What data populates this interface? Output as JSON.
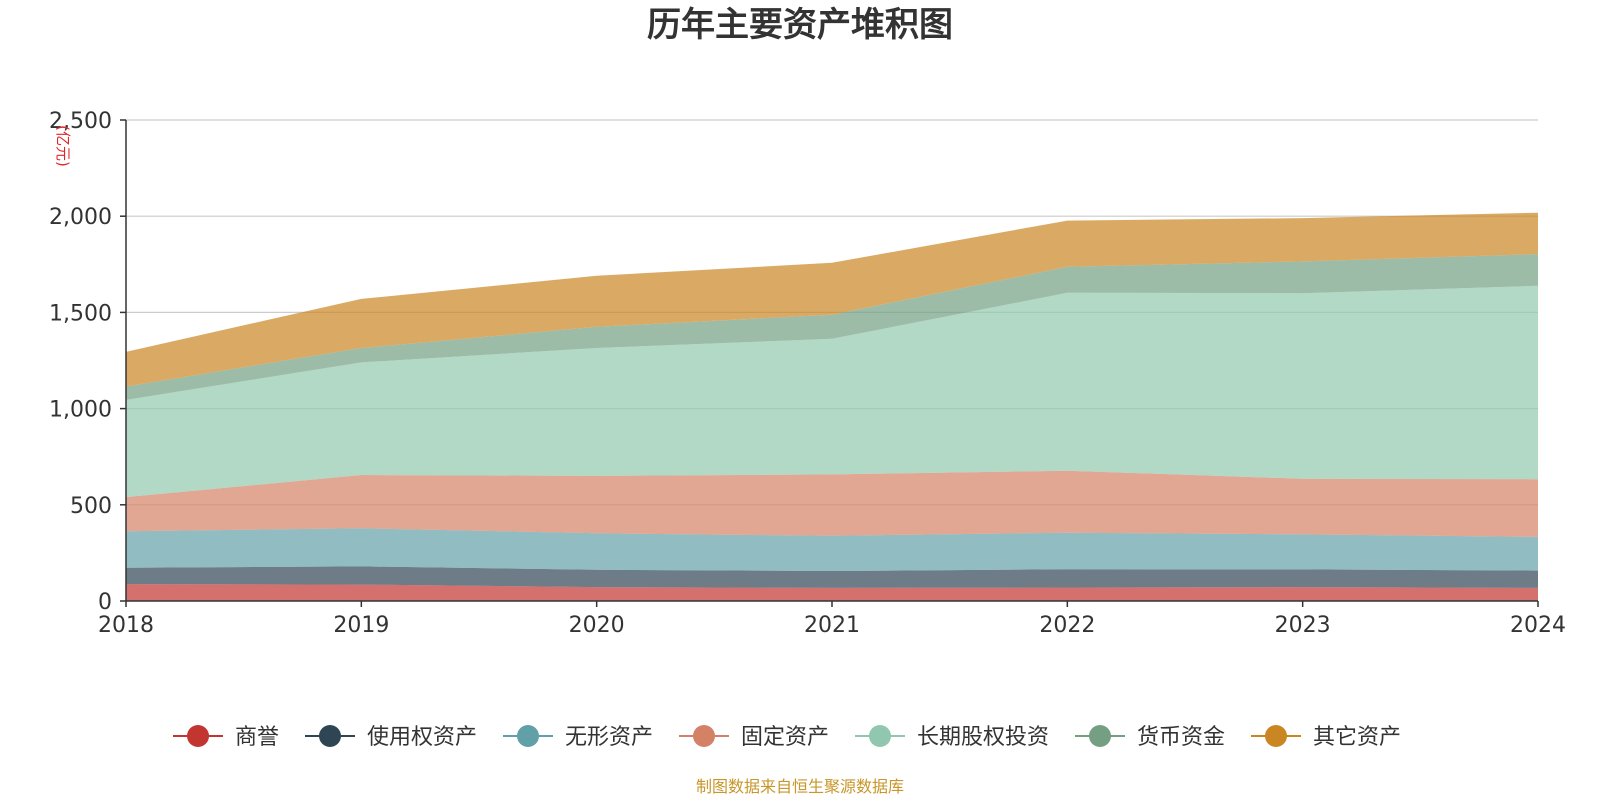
{
  "chart_data": {
    "type": "area",
    "stacked": true,
    "title": "历年主要资产堆积图",
    "ylabel": "(亿元)",
    "x": [
      "2018",
      "2019",
      "2020",
      "2021",
      "2022",
      "2023",
      "2024"
    ],
    "ylim": [
      0,
      2500
    ],
    "yticks": [
      "0",
      "500",
      "1,000",
      "1,500",
      "2,000",
      "2,500"
    ],
    "grid": true,
    "legend_position": "bottom",
    "series": [
      {
        "name": "商誉",
        "color": "#c23531",
        "values": [
          88,
          85,
          72,
          68,
          70,
          72,
          68
        ]
      },
      {
        "name": "使用权资产",
        "color": "#2f4554",
        "values": [
          85,
          95,
          90,
          88,
          95,
          92,
          90
        ]
      },
      {
        "name": "无形资产",
        "color": "#61a0a8",
        "values": [
          190,
          198,
          190,
          183,
          190,
          182,
          175
        ]
      },
      {
        "name": "固定资产",
        "color": "#d48265",
        "values": [
          177,
          277,
          298,
          319,
          322,
          289,
          300
        ]
      },
      {
        "name": "长期股权投资",
        "color": "#91c7ae",
        "values": [
          505,
          585,
          665,
          705,
          925,
          965,
          1005
        ]
      },
      {
        "name": "货币资金",
        "color": "#749f83",
        "values": [
          70,
          75,
          110,
          125,
          135,
          165,
          165
        ]
      },
      {
        "name": "其它资产",
        "color": "#ca8622",
        "values": [
          180,
          255,
          265,
          270,
          240,
          225,
          215
        ]
      }
    ]
  },
  "source_note": "制图数据来自恒生聚源数据库"
}
